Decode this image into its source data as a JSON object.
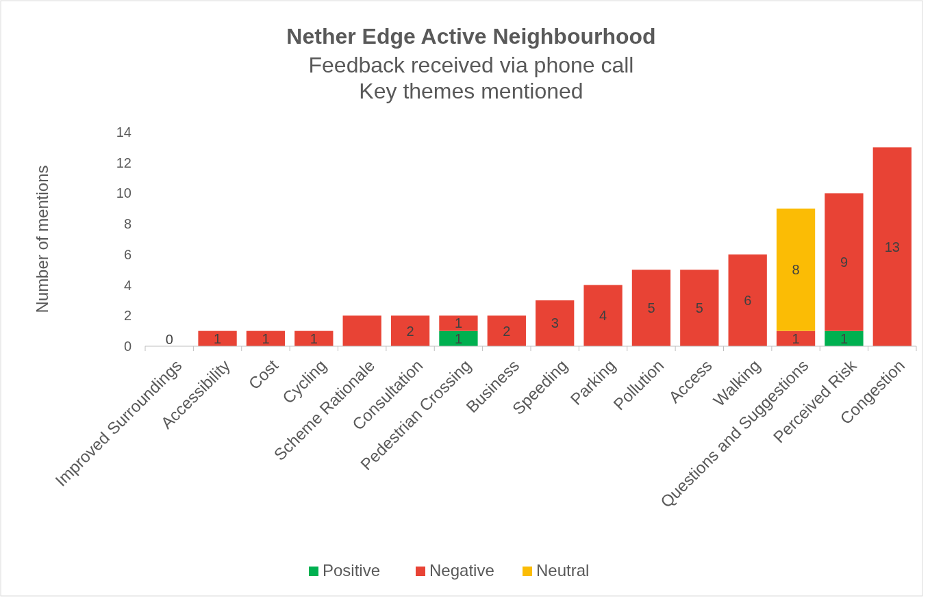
{
  "chart_data": {
    "type": "bar",
    "title": "Nether Edge Active Neighbourhood",
    "subtitle": "Feedback received via phone call\nKey themes mentioned",
    "ylabel": "Number of mentions",
    "categories": [
      "Improved Surroundings",
      "Accessibility",
      "Cost",
      "Cycling",
      "Scheme Rationale",
      "Consultation",
      "Pedestrian Crossing",
      "Business",
      "Speeding",
      "Parking",
      "Pollution",
      "Access",
      "Walking",
      "Questions and Suggestions",
      "Perceived Risk",
      "Congestion"
    ],
    "annotations": [
      {
        "text": "0",
        "x": "Improved Surroundings",
        "y": 0
      }
    ],
    "stacked": true,
    "ylim": [
      0,
      14
    ],
    "yticks": [
      0,
      2,
      4,
      6,
      8,
      10,
      12,
      14
    ],
    "grid": false,
    "legend": "bottom",
    "series": [
      {
        "name": "Positive",
        "color": "#00b050",
        "values": [
          null,
          null,
          null,
          null,
          null,
          null,
          1,
          null,
          null,
          null,
          null,
          null,
          null,
          null,
          1,
          null
        ],
        "value_labels": [
          null,
          null,
          null,
          null,
          null,
          null,
          "1",
          null,
          null,
          null,
          null,
          null,
          null,
          null,
          "1",
          null
        ]
      },
      {
        "name": "Negative",
        "color": "#e84335",
        "values": [
          0,
          1,
          1,
          1,
          2,
          2,
          1,
          2,
          3,
          4,
          5,
          5,
          6,
          1,
          9,
          13
        ],
        "value_labels": [
          null,
          "1",
          "1",
          "1",
          null,
          "2",
          "1",
          "2",
          "3",
          "4",
          "5",
          "5",
          "6",
          "1",
          "9",
          "13"
        ]
      },
      {
        "name": "Neutral",
        "color": "#fbbc05",
        "values": [
          null,
          null,
          null,
          null,
          null,
          null,
          null,
          null,
          null,
          null,
          null,
          null,
          null,
          8,
          null,
          null
        ],
        "value_labels": [
          null,
          null,
          null,
          null,
          null,
          null,
          null,
          null,
          null,
          null,
          null,
          null,
          null,
          "8",
          null,
          null
        ]
      }
    ]
  }
}
